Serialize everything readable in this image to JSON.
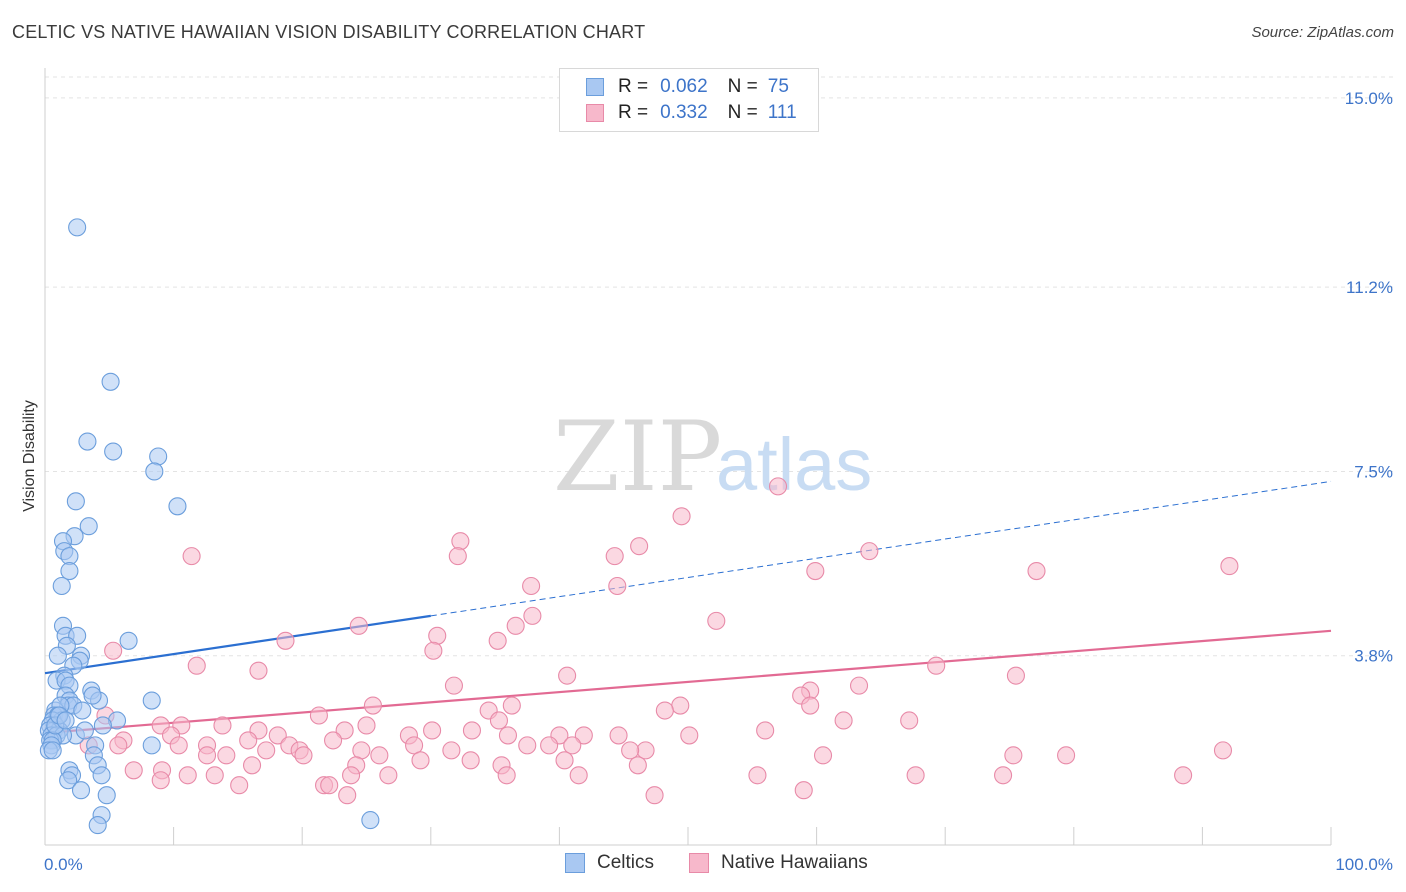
{
  "header": {
    "title": "CELTIC VS NATIVE HAWAIIAN VISION DISABILITY CORRELATION CHART",
    "source": "Source: ZipAtlas.com"
  },
  "watermark": {
    "zip": "ZIP",
    "atlas": "atlas"
  },
  "legend": {
    "rows": [
      {
        "r_label": "R =",
        "r_value": "0.062",
        "n_label": "N =",
        "n_value": "75"
      },
      {
        "r_label": "R =",
        "r_value": "0.332",
        "n_label": "N =",
        "n_value": "111"
      }
    ]
  },
  "bottom_legend": {
    "celtics": "Celtics",
    "hawaiians": "Native Hawaiians"
  },
  "colors": {
    "celtics_fill": "#a9c8f2",
    "celtics_stroke": "#6b9edc",
    "celtics_line": "#2b6fd1",
    "hawaiians_fill": "#f7b8cb",
    "hawaiians_stroke": "#e88aa8",
    "hawaiians_line": "#e26a93",
    "tick_text": "#3d74c9",
    "grid": "#e3e3e3"
  },
  "chart_data": {
    "type": "scatter",
    "title": "CELTIC VS NATIVE HAWAIIAN VISION DISABILITY CORRELATION CHART",
    "xlabel": "",
    "ylabel": "Vision Disability",
    "xlim": [
      0,
      100
    ],
    "ylim": [
      0,
      15.6
    ],
    "x_tick_labels": [
      "0.0%",
      "100.0%"
    ],
    "y_ticks": [
      3.8,
      7.5,
      11.2,
      15.0
    ],
    "y_tick_labels": [
      "3.8%",
      "7.5%",
      "11.2%",
      "15.0%"
    ],
    "grid": true,
    "legend_position": "top-center",
    "series": [
      {
        "name": "Celtics",
        "r": 0.062,
        "n": 75,
        "trend": {
          "x": [
            0,
            30
          ],
          "y": [
            3.45,
            4.6
          ],
          "dashed_to": [
            100,
            7.3
          ]
        },
        "points": [
          [
            2.5,
            12.4
          ],
          [
            5.1,
            9.3
          ],
          [
            3.3,
            8.1
          ],
          [
            5.3,
            7.9
          ],
          [
            8.8,
            7.8
          ],
          [
            8.5,
            7.5
          ],
          [
            2.4,
            6.9
          ],
          [
            10.3,
            6.8
          ],
          [
            3.4,
            6.4
          ],
          [
            2.3,
            6.2
          ],
          [
            1.4,
            6.1
          ],
          [
            1.5,
            5.9
          ],
          [
            1.9,
            5.8
          ],
          [
            1.9,
            5.5
          ],
          [
            1.3,
            5.2
          ],
          [
            1.4,
            4.4
          ],
          [
            1.6,
            4.2
          ],
          [
            2.5,
            4.2
          ],
          [
            6.5,
            4.1
          ],
          [
            1.7,
            4.0
          ],
          [
            1.0,
            3.8
          ],
          [
            2.8,
            3.8
          ],
          [
            2.7,
            3.7
          ],
          [
            2.2,
            3.6
          ],
          [
            1.5,
            3.4
          ],
          [
            0.9,
            3.3
          ],
          [
            1.6,
            3.3
          ],
          [
            1.9,
            3.2
          ],
          [
            3.6,
            3.1
          ],
          [
            1.6,
            3.0
          ],
          [
            1.9,
            2.9
          ],
          [
            8.3,
            2.9
          ],
          [
            1.8,
            2.8
          ],
          [
            0.8,
            2.7
          ],
          [
            2.2,
            2.8
          ],
          [
            4.2,
            2.9
          ],
          [
            1.2,
            2.8
          ],
          [
            0.7,
            2.6
          ],
          [
            1.0,
            2.6
          ],
          [
            1.3,
            2.5
          ],
          [
            0.6,
            2.5
          ],
          [
            0.4,
            2.4
          ],
          [
            5.6,
            2.5
          ],
          [
            4.5,
            2.4
          ],
          [
            0.7,
            2.3
          ],
          [
            1.1,
            2.3
          ],
          [
            2.4,
            2.2
          ],
          [
            3.1,
            2.3
          ],
          [
            0.3,
            2.3
          ],
          [
            0.5,
            2.2
          ],
          [
            0.9,
            2.2
          ],
          [
            1.4,
            2.2
          ],
          [
            0.4,
            2.1
          ],
          [
            0.6,
            2.1
          ],
          [
            3.9,
            2.0
          ],
          [
            8.3,
            2.0
          ],
          [
            0.5,
            2.0
          ],
          [
            0.3,
            1.9
          ],
          [
            0.6,
            1.9
          ],
          [
            3.8,
            1.8
          ],
          [
            4.1,
            1.6
          ],
          [
            1.9,
            1.5
          ],
          [
            4.4,
            1.4
          ],
          [
            2.1,
            1.4
          ],
          [
            1.8,
            1.3
          ],
          [
            2.8,
            1.1
          ],
          [
            4.8,
            1.0
          ],
          [
            4.4,
            0.6
          ],
          [
            4.1,
            0.4
          ],
          [
            25.3,
            0.5
          ],
          [
            0.8,
            2.4
          ],
          [
            1.1,
            2.6
          ],
          [
            2.9,
            2.7
          ],
          [
            3.7,
            3.0
          ],
          [
            1.6,
            2.5
          ]
        ]
      },
      {
        "name": "Native Hawaiians",
        "r": 0.332,
        "n": 111,
        "trend": {
          "x": [
            0,
            100
          ],
          "y": [
            2.25,
            4.3
          ]
        },
        "points": [
          [
            57.0,
            7.2
          ],
          [
            49.5,
            6.6
          ],
          [
            32.3,
            6.1
          ],
          [
            46.2,
            6.0
          ],
          [
            32.1,
            5.8
          ],
          [
            44.3,
            5.8
          ],
          [
            11.4,
            5.8
          ],
          [
            64.1,
            5.9
          ],
          [
            77.1,
            5.5
          ],
          [
            59.9,
            5.5
          ],
          [
            92.1,
            5.6
          ],
          [
            37.8,
            5.2
          ],
          [
            44.5,
            5.2
          ],
          [
            37.9,
            4.6
          ],
          [
            24.4,
            4.4
          ],
          [
            52.2,
            4.5
          ],
          [
            36.6,
            4.4
          ],
          [
            30.5,
            4.2
          ],
          [
            35.2,
            4.1
          ],
          [
            30.2,
            3.9
          ],
          [
            18.7,
            4.1
          ],
          [
            5.3,
            3.9
          ],
          [
            11.8,
            3.6
          ],
          [
            16.6,
            3.5
          ],
          [
            40.6,
            3.4
          ],
          [
            69.3,
            3.6
          ],
          [
            75.5,
            3.4
          ],
          [
            31.8,
            3.2
          ],
          [
            63.3,
            3.2
          ],
          [
            59.5,
            3.1
          ],
          [
            58.8,
            3.0
          ],
          [
            49.4,
            2.8
          ],
          [
            36.3,
            2.8
          ],
          [
            25.5,
            2.8
          ],
          [
            59.5,
            2.8
          ],
          [
            34.5,
            2.7
          ],
          [
            48.2,
            2.7
          ],
          [
            4.7,
            2.6
          ],
          [
            21.3,
            2.6
          ],
          [
            25.0,
            2.4
          ],
          [
            35.3,
            2.5
          ],
          [
            62.1,
            2.5
          ],
          [
            67.2,
            2.5
          ],
          [
            30.1,
            2.3
          ],
          [
            9.0,
            2.4
          ],
          [
            10.6,
            2.4
          ],
          [
            13.8,
            2.4
          ],
          [
            16.6,
            2.3
          ],
          [
            23.3,
            2.3
          ],
          [
            33.2,
            2.3
          ],
          [
            36.0,
            2.2
          ],
          [
            40.0,
            2.2
          ],
          [
            41.9,
            2.2
          ],
          [
            44.6,
            2.2
          ],
          [
            50.1,
            2.2
          ],
          [
            56.0,
            2.3
          ],
          [
            9.8,
            2.2
          ],
          [
            18.1,
            2.2
          ],
          [
            6.1,
            2.1
          ],
          [
            15.8,
            2.1
          ],
          [
            22.4,
            2.1
          ],
          [
            28.3,
            2.2
          ],
          [
            3.4,
            2.0
          ],
          [
            5.7,
            2.0
          ],
          [
            10.4,
            2.0
          ],
          [
            12.6,
            2.0
          ],
          [
            19.0,
            2.0
          ],
          [
            28.7,
            2.0
          ],
          [
            37.5,
            2.0
          ],
          [
            41.0,
            2.0
          ],
          [
            46.7,
            1.9
          ],
          [
            17.2,
            1.9
          ],
          [
            19.8,
            1.9
          ],
          [
            24.6,
            1.9
          ],
          [
            31.6,
            1.9
          ],
          [
            39.2,
            2.0
          ],
          [
            45.5,
            1.9
          ],
          [
            60.5,
            1.8
          ],
          [
            75.3,
            1.8
          ],
          [
            79.4,
            1.8
          ],
          [
            91.6,
            1.9
          ],
          [
            12.6,
            1.8
          ],
          [
            14.1,
            1.8
          ],
          [
            20.1,
            1.8
          ],
          [
            26.0,
            1.8
          ],
          [
            29.2,
            1.7
          ],
          [
            33.1,
            1.7
          ],
          [
            40.4,
            1.7
          ],
          [
            16.1,
            1.6
          ],
          [
            24.2,
            1.6
          ],
          [
            35.5,
            1.6
          ],
          [
            46.1,
            1.6
          ],
          [
            6.9,
            1.5
          ],
          [
            9.1,
            1.5
          ],
          [
            11.1,
            1.4
          ],
          [
            13.2,
            1.4
          ],
          [
            23.8,
            1.4
          ],
          [
            26.7,
            1.4
          ],
          [
            35.9,
            1.4
          ],
          [
            41.5,
            1.4
          ],
          [
            55.4,
            1.4
          ],
          [
            67.7,
            1.4
          ],
          [
            74.5,
            1.4
          ],
          [
            88.5,
            1.4
          ],
          [
            9.0,
            1.3
          ],
          [
            21.7,
            1.2
          ],
          [
            22.1,
            1.2
          ],
          [
            15.1,
            1.2
          ],
          [
            59.0,
            1.1
          ],
          [
            23.5,
            1.0
          ],
          [
            47.4,
            1.0
          ]
        ]
      }
    ]
  }
}
